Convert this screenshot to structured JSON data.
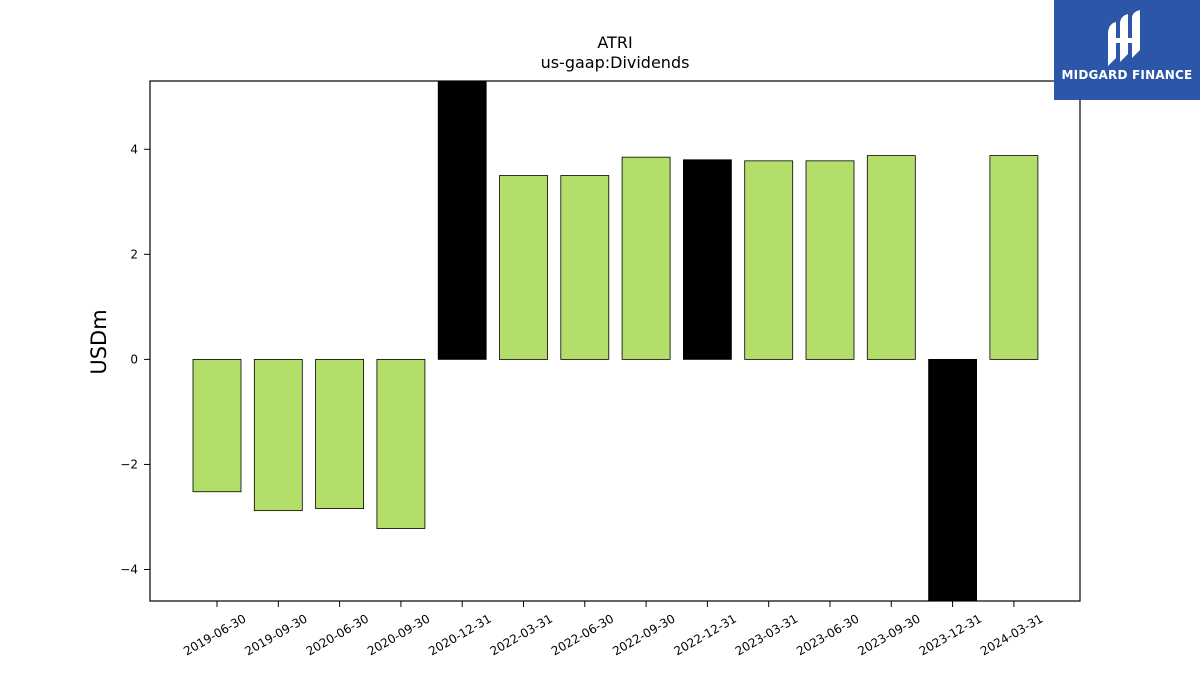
{
  "chart_data": {
    "type": "bar",
    "title": "ATRI",
    "subtitle": "us-gaap:Dividends",
    "xlabel": "",
    "ylabel": "USDm",
    "ylim": [
      -4.6,
      5.3
    ],
    "yticks": [
      -4,
      -2,
      0,
      2,
      4
    ],
    "ytick_labels": [
      "−4",
      "−2",
      "0",
      "2",
      "4"
    ],
    "grid": false,
    "legend": "none",
    "categories": [
      "2019-06-30",
      "2019-09-30",
      "2020-06-30",
      "2020-09-30",
      "2020-12-31",
      "2022-03-31",
      "2022-06-30",
      "2022-09-30",
      "2022-12-31",
      "2023-03-31",
      "2023-06-30",
      "2023-09-30",
      "2023-12-31",
      "2024-03-31"
    ],
    "values": [
      -2.52,
      -2.88,
      -2.84,
      -3.22,
      5.3,
      3.5,
      3.5,
      3.85,
      3.8,
      3.78,
      3.78,
      3.88,
      -4.6,
      3.88
    ],
    "highlight": [
      false,
      false,
      false,
      false,
      true,
      false,
      false,
      false,
      true,
      false,
      false,
      false,
      true,
      false
    ],
    "colors": {
      "normal": "#b3de69",
      "highlight": "#000000",
      "edge": "#000000"
    }
  },
  "logo": {
    "text": "MIDGARD FINANCE",
    "icon": "midgard-logo-icon",
    "background": "#2c56a8"
  }
}
